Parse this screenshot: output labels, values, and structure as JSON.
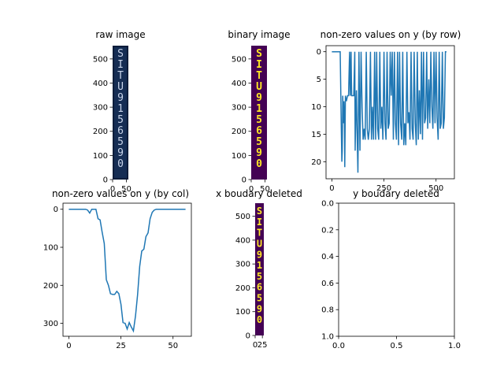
{
  "colors": {
    "line": "#1f77b4",
    "binary_bg": "#440154",
    "binary_fg": "#fde725",
    "raw_bg": "#0b1c3a",
    "raw_fg": "#c8d4ea"
  },
  "chart_data": [
    {
      "id": "raw",
      "type": "image",
      "title": "raw image",
      "colormap": "blue tones",
      "image_text": "SITU9156590",
      "xticks": [
        "0",
        "50"
      ],
      "yticks": [
        "0",
        "100",
        "200",
        "300",
        "400",
        "500"
      ],
      "xlim": [
        0,
        57
      ],
      "ylim": [
        555,
        0
      ]
    },
    {
      "id": "binary",
      "type": "image",
      "title": "binary image",
      "colormap": "viridis (binary)",
      "image_text": "SITU9156590",
      "xticks": [
        "0",
        "50"
      ],
      "yticks": [
        "0",
        "100",
        "200",
        "300",
        "400",
        "500"
      ],
      "xlim": [
        0,
        57
      ],
      "ylim": [
        555,
        0
      ]
    },
    {
      "id": "row-profile",
      "type": "line",
      "title": "non-zero values on y (by row)",
      "xticks": [
        "0",
        "250",
        "500"
      ],
      "yticks": [
        "0",
        "5",
        "10",
        "15",
        "20"
      ],
      "xlim": [
        -28,
        588
      ],
      "ylim": [
        -1.1,
        23.1
      ],
      "grid": false,
      "series": [
        {
          "x": [
            0,
            38,
            40,
            45,
            48,
            50,
            52,
            55,
            58,
            60,
            62,
            65,
            70,
            75,
            80,
            85,
            88,
            92,
            95,
            100,
            105,
            110,
            112,
            115,
            118,
            120,
            125,
            130,
            135,
            140,
            145,
            150,
            155,
            160,
            165,
            170,
            175,
            180,
            185,
            190,
            195,
            200,
            205,
            210,
            215,
            220,
            225,
            230,
            235,
            240,
            245,
            250,
            255,
            260,
            265,
            270,
            275,
            280,
            285,
            290,
            295,
            300,
            305,
            310,
            315,
            320,
            325,
            330,
            335,
            340,
            345,
            350,
            355,
            360,
            365,
            370,
            375,
            380,
            385,
            390,
            395,
            400,
            405,
            410,
            415,
            420,
            425,
            430,
            435,
            440,
            445,
            450,
            455,
            460,
            465,
            470,
            475,
            480,
            485,
            490,
            495,
            500,
            505,
            510,
            515,
            520,
            525,
            530,
            535,
            540,
            545,
            550
          ],
          "y": [
            0,
            0,
            0,
            13,
            20,
            18,
            8,
            13,
            9,
            12,
            21,
            8,
            9,
            8,
            8,
            0,
            8,
            0,
            8,
            8,
            8,
            0,
            18,
            11,
            7,
            13,
            22,
            0,
            18,
            0,
            10,
            16,
            14,
            16,
            0,
            14,
            16,
            14,
            0,
            16,
            10,
            16,
            0,
            16,
            0,
            14,
            16,
            0,
            14,
            10,
            16,
            0,
            13,
            16,
            0,
            14,
            13,
            0,
            8,
            0,
            16,
            0,
            13,
            16,
            0,
            17,
            0,
            13,
            16,
            0,
            17,
            13,
            17,
            0,
            13,
            11,
            16,
            0,
            14,
            16,
            0,
            13,
            17,
            0,
            16,
            7,
            15,
            0,
            16,
            0,
            13,
            12,
            0,
            14,
            5,
            13,
            0,
            10,
            14,
            0,
            13,
            0,
            12,
            16,
            0,
            14,
            13,
            0,
            14,
            12,
            0,
            0
          ]
        }
      ]
    },
    {
      "id": "col-profile",
      "type": "line",
      "title": "non-zero values on y (by col)",
      "xticks": [
        "0",
        "25",
        "50"
      ],
      "yticks": [
        "0",
        "100",
        "200",
        "300"
      ],
      "xlim": [
        -2.8,
        58.8
      ],
      "ylim": [
        -16,
        334
      ],
      "grid": false,
      "series": [
        {
          "x": [
            0,
            1,
            2,
            3,
            4,
            5,
            6,
            7,
            8,
            9,
            10,
            11,
            12,
            13,
            14,
            15,
            16,
            17,
            18,
            19,
            20,
            21,
            22,
            23,
            24,
            25,
            26,
            27,
            28,
            29,
            30,
            31,
            32,
            33,
            34,
            35,
            36,
            37,
            38,
            39,
            40,
            41,
            42,
            43,
            44,
            45,
            46,
            47,
            48,
            49,
            50,
            51,
            52,
            53,
            54,
            55,
            56
          ],
          "y": [
            0,
            0,
            0,
            0,
            0,
            0,
            0,
            0,
            0,
            2,
            10,
            0,
            0,
            0,
            25,
            28,
            60,
            90,
            185,
            200,
            222,
            224,
            224,
            216,
            222,
            250,
            298,
            300,
            315,
            298,
            310,
            320,
            280,
            225,
            150,
            110,
            105,
            72,
            62,
            25,
            8,
            2,
            0,
            0,
            0,
            0,
            0,
            0,
            0,
            0,
            0,
            0,
            0,
            0,
            0,
            0,
            0
          ]
        }
      ]
    },
    {
      "id": "x-deleted",
      "type": "image",
      "title": "x boudary deleted",
      "colormap": "viridis (binary)",
      "image_text": "SITU9156590",
      "xticks": [
        "0",
        "25"
      ],
      "yticks": [
        "0",
        "100",
        "200",
        "300",
        "400",
        "500"
      ],
      "xlim": [
        0,
        30
      ],
      "ylim": [
        555,
        0
      ]
    },
    {
      "id": "y-deleted",
      "type": "empty",
      "title": "y boudary deleted",
      "xticks": [
        "0.0",
        "0.5",
        "1.0"
      ],
      "yticks": [
        "0.0",
        "0.2",
        "0.4",
        "0.6",
        "0.8",
        "1.0"
      ],
      "xlim": [
        0,
        1
      ],
      "ylim": [
        0,
        1
      ]
    }
  ]
}
